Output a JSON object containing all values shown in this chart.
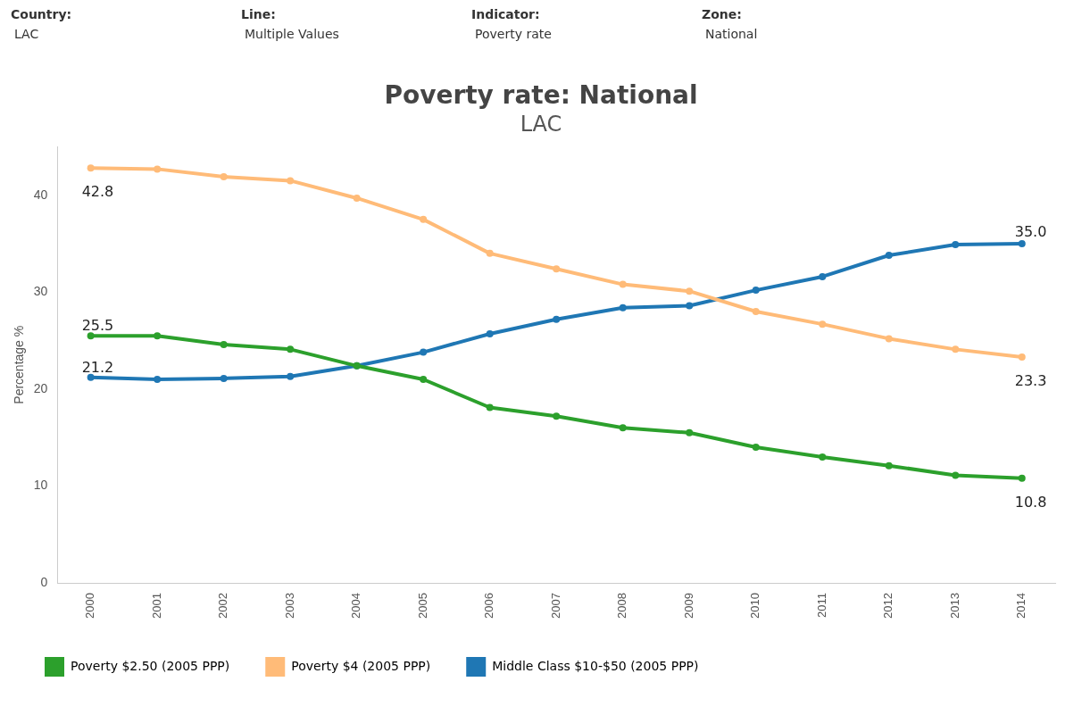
{
  "chart_data": {
    "type": "line",
    "title": "Poverty rate: National",
    "subtitle": "LAC",
    "ylabel": "Percentage %",
    "annotations": [
      "Country:",
      "LAC",
      "Line:",
      "Multiple Values",
      "Indicator:",
      "Poverty rate",
      "Zone:",
      "National"
    ],
    "categories": [
      "2000",
      "2001",
      "2002",
      "2003",
      "2004",
      "2005",
      "2006",
      "2007",
      "2008",
      "2009",
      "2010",
      "2011",
      "2012",
      "2013",
      "2014"
    ],
    "series": [
      {
        "name": "Poverty $2.50 (2005 PPP)",
        "color": "#2ca02c",
        "values": [
          25.5,
          25.5,
          24.6,
          24.1,
          22.4,
          21.0,
          18.1,
          17.2,
          16.0,
          15.5,
          14.0,
          13.0,
          12.1,
          11.1,
          10.8
        ],
        "value_labels": [
          "25.5",
          null,
          null,
          null,
          null,
          null,
          null,
          null,
          null,
          null,
          null,
          null,
          null,
          null,
          "10.8"
        ]
      },
      {
        "name": "Poverty $4 (2005 PPP)",
        "color": "#ffbb78",
        "values": [
          42.8,
          42.7,
          41.9,
          41.5,
          39.7,
          37.5,
          34.0,
          32.4,
          30.8,
          30.1,
          28.0,
          26.7,
          25.2,
          24.1,
          23.3
        ],
        "value_labels": [
          "42.8",
          null,
          null,
          null,
          null,
          null,
          null,
          null,
          null,
          null,
          null,
          null,
          null,
          null,
          "23.3"
        ]
      },
      {
        "name": "Middle Class $10-$50 (2005 PPP)",
        "color": "#1f77b4",
        "values": [
          21.2,
          21.0,
          21.1,
          21.3,
          22.4,
          23.8,
          25.7,
          27.2,
          28.4,
          28.6,
          30.2,
          31.6,
          33.8,
          34.9,
          35.0
        ],
        "value_labels": [
          "21.2",
          null,
          null,
          null,
          null,
          null,
          null,
          null,
          null,
          null,
          null,
          null,
          null,
          null,
          "35.0"
        ]
      }
    ],
    "ylim": [
      0,
      45
    ],
    "yticks": [
      0,
      10,
      20,
      30,
      40
    ],
    "grid": false,
    "legend": "bottom",
    "marker": "circle",
    "line_style": "solid"
  }
}
